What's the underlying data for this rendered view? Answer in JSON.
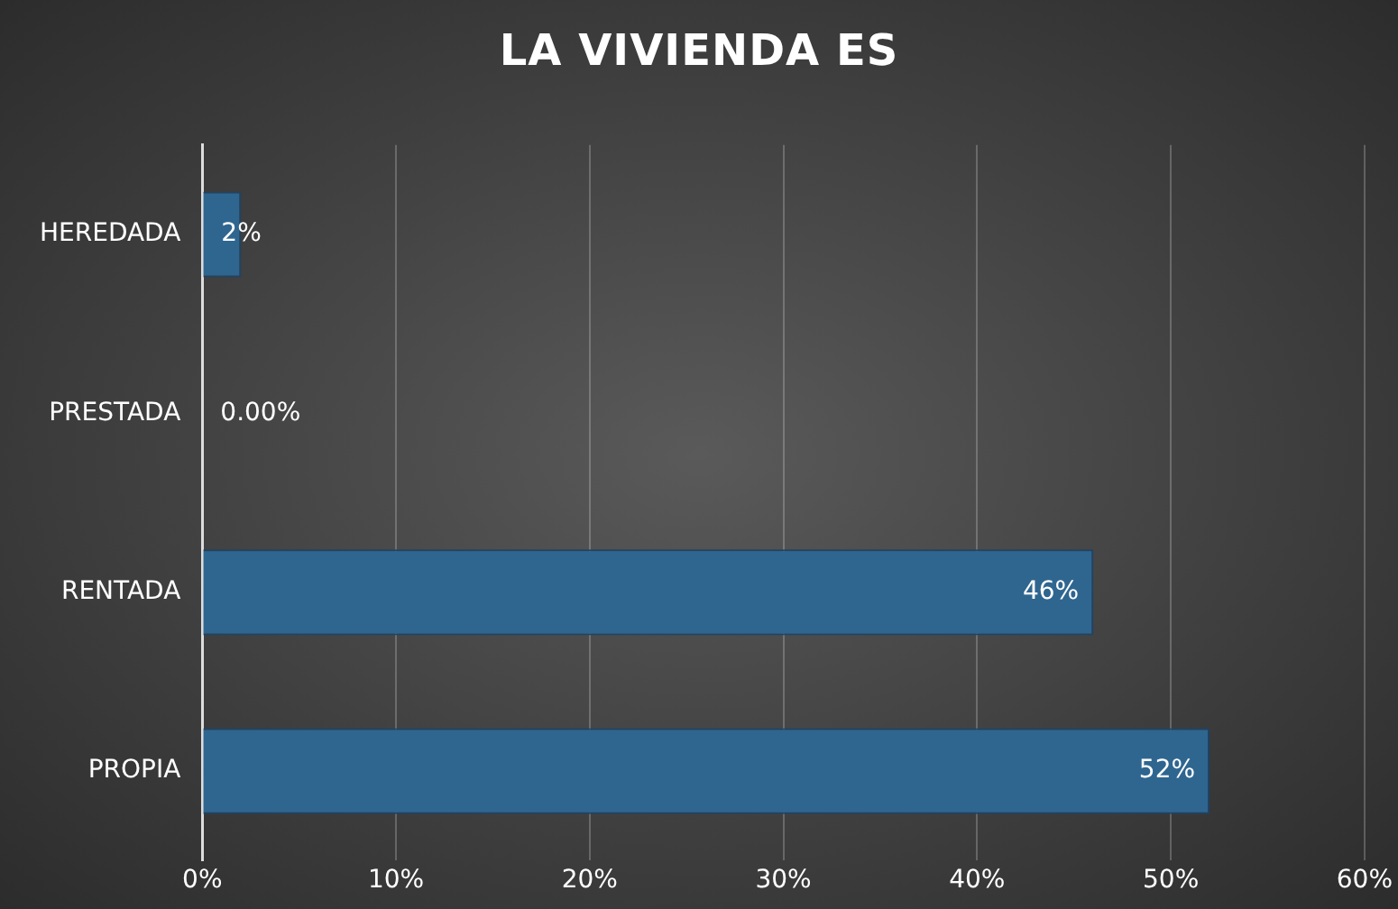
{
  "chart_data": {
    "type": "bar",
    "title": "LA VIVIENDA ES",
    "orientation": "horizontal",
    "categories": [
      "HEREDADA",
      "PRESTADA",
      "RENTADA",
      "PROPIA"
    ],
    "values": [
      2,
      0,
      46,
      52
    ],
    "color": "#2f6690",
    "value_labels": [
      "2%",
      "0.00%",
      "46%",
      "52%"
    ],
    "xlim": [
      0,
      60
    ],
    "xticks": [
      {
        "value": 0,
        "label": "0%"
      },
      {
        "value": 10,
        "label": "10%"
      },
      {
        "value": 20,
        "label": "20%"
      },
      {
        "value": 30,
        "label": "30%"
      },
      {
        "value": 40,
        "label": "40%"
      },
      {
        "value": 50,
        "label": "50%"
      },
      {
        "value": 60,
        "label": "60%"
      }
    ],
    "grid": "x",
    "legend": false
  }
}
